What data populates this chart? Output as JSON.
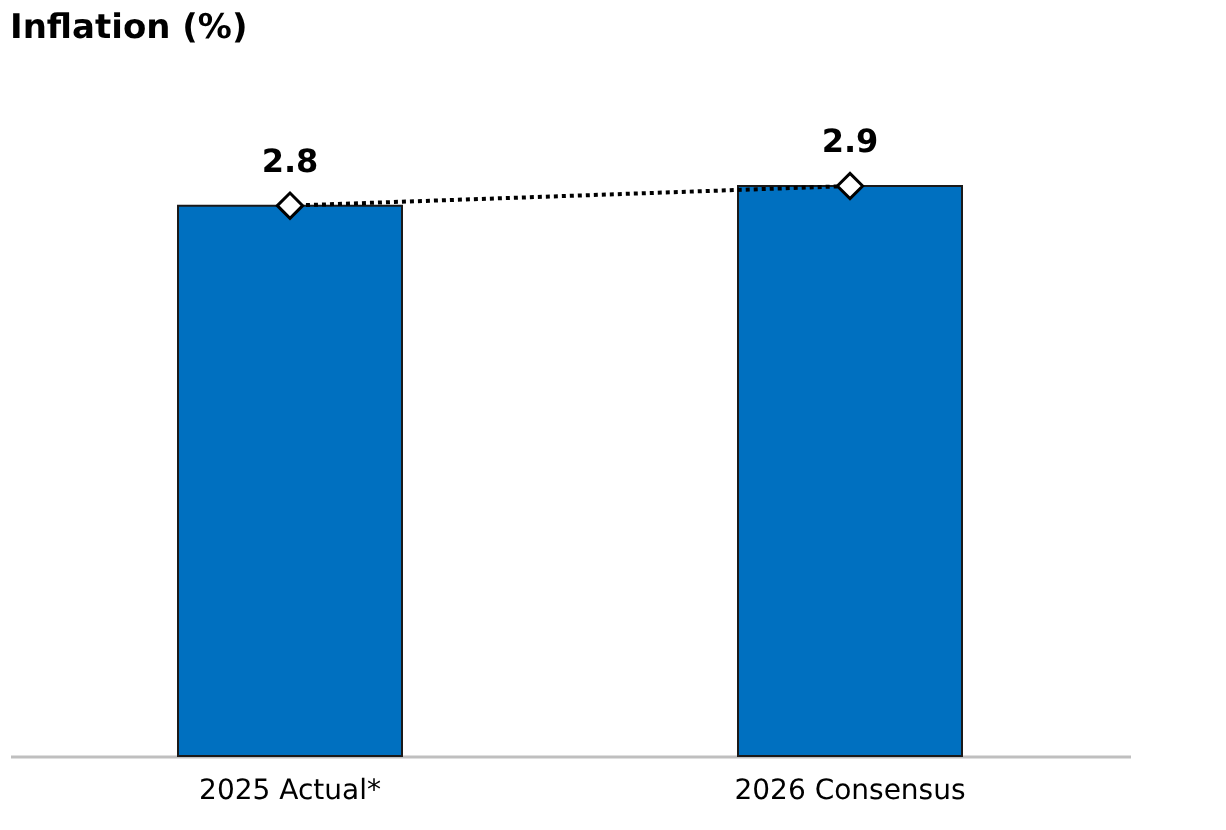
{
  "chart_data": {
    "type": "bar",
    "title": "Inflation (%)",
    "categories": [
      "2025 Actual*",
      "2026 Consensus"
    ],
    "series": [
      {
        "color": "#0070c0",
        "values": [
          2.8,
          2.9
        ]
      },
      {
        "type": "line",
        "color": "#000000",
        "values": [
          2.8,
          2.9
        ],
        "value_labels": [
          "2.8",
          "2.9"
        ]
      }
    ],
    "marker": "diamond",
    "line_style": "dotted"
  }
}
